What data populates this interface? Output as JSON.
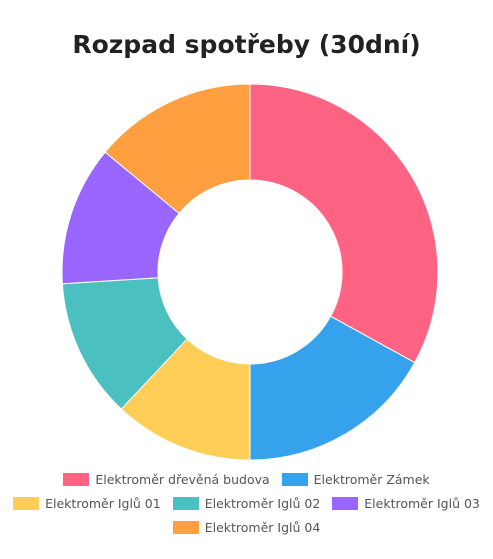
{
  "chart_data": {
    "type": "pie",
    "variant": "donut",
    "title": "Rozpad spotřeby (30dní)",
    "legend_position": "bottom",
    "series": [
      {
        "name": "Elektroměr dřevěná budova",
        "value": 33,
        "color": "#FF6384"
      },
      {
        "name": "Elektroměr Zámek",
        "value": 17,
        "color": "#36A2EB"
      },
      {
        "name": "Elektroměr Iglů 01",
        "value": 12,
        "color": "#FFCE56"
      },
      {
        "name": "Elektroměr Iglů 02",
        "value": 12,
        "color": "#4BC0C0"
      },
      {
        "name": "Elektroměr Iglů 03",
        "value": 12,
        "color": "#9966FF"
      },
      {
        "name": "Elektroměr Iglů 04",
        "value": 14,
        "color": "#FF9F40"
      }
    ]
  }
}
